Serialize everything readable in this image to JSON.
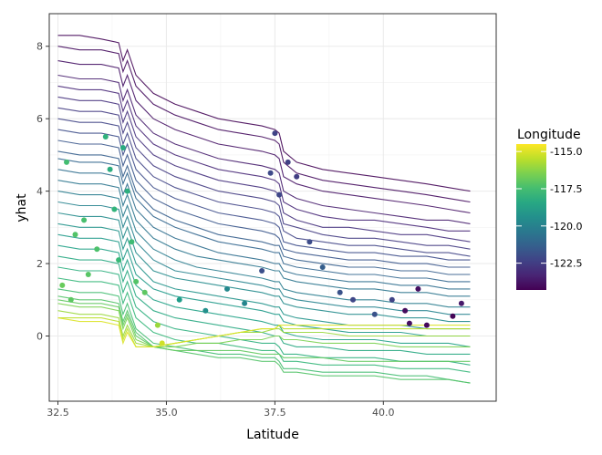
{
  "chart_data": {
    "type": "line",
    "title": "",
    "xlabel": "Latitude",
    "ylabel": "yhat",
    "xlim": [
      32.3,
      42.6
    ],
    "ylim": [
      -1.8,
      8.9
    ],
    "x_ticks": [
      32.5,
      35.0,
      37.5,
      40.0
    ],
    "x_tick_labels": [
      "32.5",
      "35.0",
      "37.5",
      "40.0"
    ],
    "y_ticks": [
      0,
      2,
      4,
      6,
      8
    ],
    "y_tick_labels": [
      "0",
      "2",
      "4",
      "6",
      "8"
    ],
    "grid": true,
    "legend": {
      "title": "Longitude",
      "placement": "right",
      "type": "colorbar",
      "colormap": "viridis",
      "range": [
        -124.3,
        -114.5
      ],
      "ticks": [
        -115.0,
        -117.5,
        -120.0,
        -122.5
      ],
      "tick_labels": [
        "-115.0",
        "-117.5",
        "-120.0",
        "-122.5"
      ]
    },
    "series": [
      {
        "longitude": -124.2,
        "values": [
          8.3,
          8.3,
          8.2,
          8.1,
          7.6,
          7.9,
          7.2,
          6.7,
          6.4,
          6.2,
          6.0,
          5.9,
          5.8,
          5.7,
          5.6,
          5.1,
          4.8,
          4.6,
          4.5,
          4.4,
          4.3,
          4.2,
          4.1,
          4.0
        ]
      },
      {
        "longitude": -124.0,
        "values": [
          8.0,
          7.9,
          7.9,
          7.8,
          7.3,
          7.6,
          6.9,
          6.4,
          6.1,
          5.9,
          5.7,
          5.6,
          5.5,
          5.4,
          5.3,
          4.8,
          4.5,
          4.3,
          4.2,
          4.1,
          4.0,
          3.9,
          3.8,
          3.7
        ]
      },
      {
        "longitude": -123.8,
        "values": [
          7.6,
          7.5,
          7.5,
          7.4,
          6.9,
          7.2,
          6.5,
          6.0,
          5.7,
          5.5,
          5.3,
          5.2,
          5.1,
          5.0,
          4.9,
          4.4,
          4.2,
          4.0,
          3.9,
          3.8,
          3.7,
          3.6,
          3.5,
          3.4
        ]
      },
      {
        "longitude": -123.5,
        "values": [
          7.2,
          7.1,
          7.1,
          7.0,
          6.5,
          6.8,
          6.1,
          5.6,
          5.3,
          5.1,
          4.9,
          4.8,
          4.7,
          4.6,
          4.5,
          4.0,
          3.8,
          3.6,
          3.5,
          3.4,
          3.3,
          3.2,
          3.2,
          3.1
        ]
      },
      {
        "longitude": -123.2,
        "values": [
          6.9,
          6.8,
          6.8,
          6.7,
          6.2,
          6.5,
          5.8,
          5.3,
          5.0,
          4.8,
          4.6,
          4.5,
          4.4,
          4.3,
          4.2,
          3.7,
          3.5,
          3.3,
          3.2,
          3.2,
          3.1,
          3.0,
          2.9,
          2.9
        ]
      },
      {
        "longitude": -122.9,
        "values": [
          6.6,
          6.5,
          6.5,
          6.4,
          5.9,
          6.2,
          5.5,
          5.0,
          4.7,
          4.5,
          4.3,
          4.2,
          4.1,
          4.0,
          3.9,
          3.4,
          3.2,
          3.0,
          3.0,
          2.9,
          2.8,
          2.8,
          2.7,
          2.6
        ]
      },
      {
        "longitude": -122.6,
        "values": [
          6.3,
          6.2,
          6.2,
          6.1,
          5.6,
          5.9,
          5.2,
          4.7,
          4.4,
          4.2,
          4.0,
          3.9,
          3.8,
          3.7,
          3.6,
          3.1,
          3.0,
          2.8,
          2.7,
          2.7,
          2.6,
          2.5,
          2.5,
          2.4
        ]
      },
      {
        "longitude": -122.3,
        "values": [
          6.0,
          5.9,
          5.9,
          5.8,
          5.3,
          5.6,
          4.9,
          4.4,
          4.1,
          3.9,
          3.7,
          3.6,
          3.5,
          3.4,
          3.3,
          2.9,
          2.7,
          2.6,
          2.5,
          2.5,
          2.4,
          2.3,
          2.3,
          2.2
        ]
      },
      {
        "longitude": -122.0,
        "values": [
          5.7,
          5.6,
          5.6,
          5.5,
          5.0,
          5.3,
          4.6,
          4.1,
          3.8,
          3.6,
          3.4,
          3.3,
          3.2,
          3.1,
          3.0,
          2.6,
          2.5,
          2.4,
          2.3,
          2.3,
          2.2,
          2.2,
          2.1,
          2.1
        ]
      },
      {
        "longitude": -121.7,
        "values": [
          5.4,
          5.3,
          5.3,
          5.2,
          4.7,
          5.0,
          4.3,
          3.8,
          3.5,
          3.3,
          3.1,
          3.0,
          2.9,
          2.8,
          2.7,
          2.4,
          2.3,
          2.2,
          2.1,
          2.1,
          2.0,
          2.0,
          1.9,
          1.9
        ]
      },
      {
        "longitude": -121.4,
        "values": [
          5.1,
          5.0,
          5.0,
          4.9,
          4.4,
          4.7,
          4.0,
          3.5,
          3.2,
          3.0,
          2.8,
          2.7,
          2.6,
          2.5,
          2.5,
          2.2,
          2.1,
          2.0,
          1.9,
          1.9,
          1.8,
          1.8,
          1.7,
          1.7
        ]
      },
      {
        "longitude": -121.1,
        "values": [
          4.9,
          4.8,
          4.8,
          4.7,
          4.2,
          4.5,
          3.8,
          3.3,
          3.0,
          2.8,
          2.6,
          2.5,
          2.4,
          2.3,
          2.3,
          2.0,
          1.9,
          1.8,
          1.7,
          1.7,
          1.6,
          1.6,
          1.5,
          1.5
        ]
      },
      {
        "longitude": -120.8,
        "values": [
          4.6,
          4.5,
          4.5,
          4.4,
          3.9,
          4.2,
          3.5,
          3.0,
          2.7,
          2.5,
          2.3,
          2.2,
          2.1,
          2.0,
          2.0,
          1.8,
          1.7,
          1.6,
          1.5,
          1.5,
          1.4,
          1.4,
          1.3,
          1.3
        ]
      },
      {
        "longitude": -120.5,
        "values": [
          4.3,
          4.2,
          4.2,
          4.1,
          3.6,
          3.9,
          3.2,
          2.7,
          2.4,
          2.2,
          2.1,
          2.0,
          1.9,
          1.8,
          1.8,
          1.6,
          1.5,
          1.4,
          1.3,
          1.3,
          1.2,
          1.2,
          1.1,
          1.1
        ]
      },
      {
        "longitude": -120.2,
        "values": [
          4.0,
          3.9,
          3.9,
          3.8,
          3.3,
          3.6,
          2.9,
          2.4,
          2.1,
          1.9,
          1.8,
          1.7,
          1.6,
          1.5,
          1.5,
          1.3,
          1.2,
          1.1,
          1.0,
          1.0,
          0.9,
          0.9,
          0.8,
          0.8
        ]
      },
      {
        "longitude": -119.9,
        "values": [
          3.7,
          3.6,
          3.6,
          3.5,
          3.0,
          3.3,
          2.6,
          2.1,
          1.8,
          1.7,
          1.6,
          1.5,
          1.4,
          1.3,
          1.3,
          1.1,
          1.0,
          0.9,
          0.8,
          0.8,
          0.7,
          0.7,
          0.6,
          0.6
        ]
      },
      {
        "longitude": -119.6,
        "values": [
          3.4,
          3.3,
          3.3,
          3.2,
          2.7,
          3.0,
          2.3,
          1.8,
          1.6,
          1.5,
          1.4,
          1.3,
          1.2,
          1.1,
          1.1,
          0.9,
          0.8,
          0.7,
          0.6,
          0.6,
          0.5,
          0.5,
          0.4,
          0.4
        ]
      },
      {
        "longitude": -119.3,
        "values": [
          3.1,
          3.0,
          3.0,
          2.9,
          2.4,
          2.7,
          2.0,
          1.5,
          1.3,
          1.2,
          1.1,
          1.0,
          0.9,
          0.8,
          0.8,
          0.6,
          0.5,
          0.4,
          0.3,
          0.3,
          0.3,
          0.2,
          0.2,
          0.2
        ]
      },
      {
        "longitude": -119.0,
        "values": [
          2.8,
          2.7,
          2.7,
          2.6,
          2.1,
          2.4,
          1.7,
          1.3,
          1.1,
          1.0,
          0.9,
          0.8,
          0.7,
          0.6,
          0.6,
          0.4,
          0.3,
          0.2,
          0.1,
          0.1,
          0.1,
          0.0,
          0.0,
          0.0
        ]
      },
      {
        "longitude": -118.7,
        "values": [
          2.5,
          2.4,
          2.4,
          2.3,
          1.8,
          2.1,
          1.4,
          1.0,
          0.8,
          0.7,
          0.6,
          0.5,
          0.4,
          0.3,
          0.3,
          0.1,
          0.0,
          -0.1,
          -0.1,
          -0.1,
          -0.2,
          -0.2,
          -0.2,
          -0.3
        ]
      },
      {
        "longitude": -118.4,
        "values": [
          2.2,
          2.1,
          2.1,
          2.0,
          1.5,
          1.8,
          1.1,
          0.7,
          0.5,
          0.4,
          0.3,
          0.2,
          0.1,
          0.0,
          0.0,
          -0.2,
          -0.3,
          -0.3,
          -0.4,
          -0.4,
          -0.4,
          -0.5,
          -0.5,
          -0.5
        ]
      },
      {
        "longitude": -118.1,
        "values": [
          1.9,
          1.8,
          1.8,
          1.7,
          1.2,
          1.5,
          0.8,
          0.4,
          0.2,
          0.1,
          0.0,
          -0.1,
          -0.2,
          -0.2,
          -0.3,
          -0.5,
          -0.5,
          -0.6,
          -0.6,
          -0.6,
          -0.7,
          -0.7,
          -0.7,
          -0.8
        ]
      },
      {
        "longitude": -117.8,
        "values": [
          1.6,
          1.5,
          1.5,
          1.4,
          0.9,
          1.2,
          0.5,
          0.1,
          -0.1,
          -0.2,
          -0.2,
          -0.3,
          -0.4,
          -0.4,
          -0.5,
          -0.7,
          -0.7,
          -0.8,
          -0.8,
          -0.8,
          -0.9,
          -0.9,
          -0.9,
          -1.0
        ]
      },
      {
        "longitude": -117.5,
        "values": [
          1.3,
          1.2,
          1.2,
          1.1,
          0.6,
          0.9,
          0.2,
          -0.2,
          -0.3,
          -0.4,
          -0.5,
          -0.5,
          -0.6,
          -0.6,
          -0.7,
          -0.9,
          -0.9,
          -1.0,
          -1.0,
          -1.0,
          -1.1,
          -1.1,
          -1.2,
          -1.3
        ]
      },
      {
        "longitude": -117.2,
        "values": [
          1.1,
          1.0,
          1.0,
          0.9,
          0.4,
          0.7,
          0.1,
          -0.3,
          -0.4,
          -0.5,
          -0.6,
          -0.6,
          -0.7,
          -0.7,
          -0.8,
          -1.0,
          -1.0,
          -1.1,
          -1.1,
          -1.1,
          -1.2,
          -1.2,
          -1.2,
          -1.3
        ]
      },
      {
        "longitude": -116.9,
        "values": [
          1.0,
          0.9,
          0.9,
          0.8,
          0.3,
          0.6,
          0.0,
          -0.3,
          -0.4,
          -0.4,
          -0.4,
          -0.4,
          -0.5,
          -0.5,
          -0.5,
          -0.6,
          -0.6,
          -0.6,
          -0.7,
          -0.7,
          -0.7,
          -0.7,
          -0.7,
          -0.7
        ]
      },
      {
        "longitude": -116.5,
        "values": [
          0.9,
          0.8,
          0.8,
          0.7,
          0.2,
          0.5,
          -0.1,
          -0.3,
          -0.3,
          -0.2,
          -0.2,
          -0.1,
          -0.1,
          0.0,
          0.0,
          -0.1,
          -0.1,
          -0.2,
          -0.2,
          -0.2,
          -0.3,
          -0.3,
          -0.3,
          -0.3
        ]
      },
      {
        "longitude": -116.0,
        "values": [
          0.7,
          0.6,
          0.6,
          0.5,
          0.0,
          0.3,
          -0.2,
          -0.3,
          -0.2,
          -0.1,
          0.0,
          0.1,
          0.1,
          0.2,
          0.2,
          0.1,
          0.1,
          0.1,
          0.0,
          0.0,
          0.0,
          0.0,
          0.0,
          0.0
        ]
      },
      {
        "longitude": -115.5,
        "values": [
          0.5,
          0.5,
          0.5,
          0.4,
          -0.1,
          0.2,
          -0.3,
          -0.3,
          -0.2,
          -0.1,
          0.0,
          0.1,
          0.2,
          0.2,
          0.3,
          0.2,
          0.2,
          0.2,
          0.2,
          0.2,
          0.2,
          0.2,
          0.2,
          0.2
        ]
      },
      {
        "longitude": -115.0,
        "values": [
          0.5,
          0.4,
          0.4,
          0.3,
          -0.2,
          0.1,
          -0.3,
          -0.3,
          -0.2,
          -0.1,
          0.0,
          0.1,
          0.2,
          0.2,
          0.3,
          0.3,
          0.3,
          0.3,
          0.3,
          0.3,
          0.3,
          0.3,
          0.3,
          0.3
        ]
      }
    ],
    "x": [
      32.5,
      33.0,
      33.5,
      33.9,
      34.0,
      34.1,
      34.3,
      34.7,
      35.2,
      35.7,
      36.2,
      36.7,
      37.2,
      37.5,
      37.6,
      37.7,
      38.0,
      38.6,
      39.2,
      39.8,
      40.4,
      41.0,
      41.5,
      42.0
    ],
    "points": [
      {
        "x": 32.6,
        "y": 1.4,
        "lon": -116.8
      },
      {
        "x": 32.7,
        "y": 4.8,
        "lon": -117.5
      },
      {
        "x": 32.8,
        "y": 1.0,
        "lon": -117.0
      },
      {
        "x": 32.9,
        "y": 2.8,
        "lon": -117.2
      },
      {
        "x": 33.1,
        "y": 3.2,
        "lon": -117.4
      },
      {
        "x": 33.2,
        "y": 1.7,
        "lon": -117.1
      },
      {
        "x": 33.4,
        "y": 2.4,
        "lon": -117.3
      },
      {
        "x": 33.6,
        "y": 5.5,
        "lon": -118.0
      },
      {
        "x": 33.7,
        "y": 4.6,
        "lon": -118.2
      },
      {
        "x": 33.8,
        "y": 3.5,
        "lon": -117.9
      },
      {
        "x": 33.9,
        "y": 2.1,
        "lon": -117.7
      },
      {
        "x": 34.0,
        "y": 5.2,
        "lon": -118.3
      },
      {
        "x": 34.1,
        "y": 4.0,
        "lon": -118.1
      },
      {
        "x": 34.2,
        "y": 2.6,
        "lon": -117.6
      },
      {
        "x": 34.3,
        "y": 1.5,
        "lon": -117.2
      },
      {
        "x": 34.5,
        "y": 1.2,
        "lon": -117.0
      },
      {
        "x": 34.8,
        "y": 0.3,
        "lon": -116.0
      },
      {
        "x": 34.9,
        "y": -0.2,
        "lon": -115.2
      },
      {
        "x": 35.3,
        "y": 1.0,
        "lon": -118.9
      },
      {
        "x": 35.9,
        "y": 0.7,
        "lon": -119.4
      },
      {
        "x": 36.4,
        "y": 1.3,
        "lon": -119.7
      },
      {
        "x": 36.8,
        "y": 0.9,
        "lon": -119.8
      },
      {
        "x": 37.2,
        "y": 1.8,
        "lon": -121.9
      },
      {
        "x": 37.4,
        "y": 4.5,
        "lon": -122.1
      },
      {
        "x": 37.5,
        "y": 5.6,
        "lon": -122.3
      },
      {
        "x": 37.6,
        "y": 3.9,
        "lon": -122.2
      },
      {
        "x": 37.8,
        "y": 4.8,
        "lon": -122.4
      },
      {
        "x": 38.0,
        "y": 4.4,
        "lon": -122.5
      },
      {
        "x": 38.3,
        "y": 2.6,
        "lon": -122.0
      },
      {
        "x": 38.6,
        "y": 1.9,
        "lon": -121.4
      },
      {
        "x": 39.0,
        "y": 1.2,
        "lon": -121.8
      },
      {
        "x": 39.3,
        "y": 1.0,
        "lon": -122.2
      },
      {
        "x": 39.8,
        "y": 0.6,
        "lon": -121.8
      },
      {
        "x": 40.2,
        "y": 1.0,
        "lon": -122.3
      },
      {
        "x": 40.5,
        "y": 0.7,
        "lon": -124.0
      },
      {
        "x": 40.6,
        "y": 0.35,
        "lon": -123.9
      },
      {
        "x": 40.8,
        "y": 1.3,
        "lon": -123.9
      },
      {
        "x": 41.0,
        "y": 0.3,
        "lon": -124.1
      },
      {
        "x": 41.6,
        "y": 0.55,
        "lon": -124.2
      },
      {
        "x": 41.8,
        "y": 0.9,
        "lon": -123.6
      }
    ]
  }
}
